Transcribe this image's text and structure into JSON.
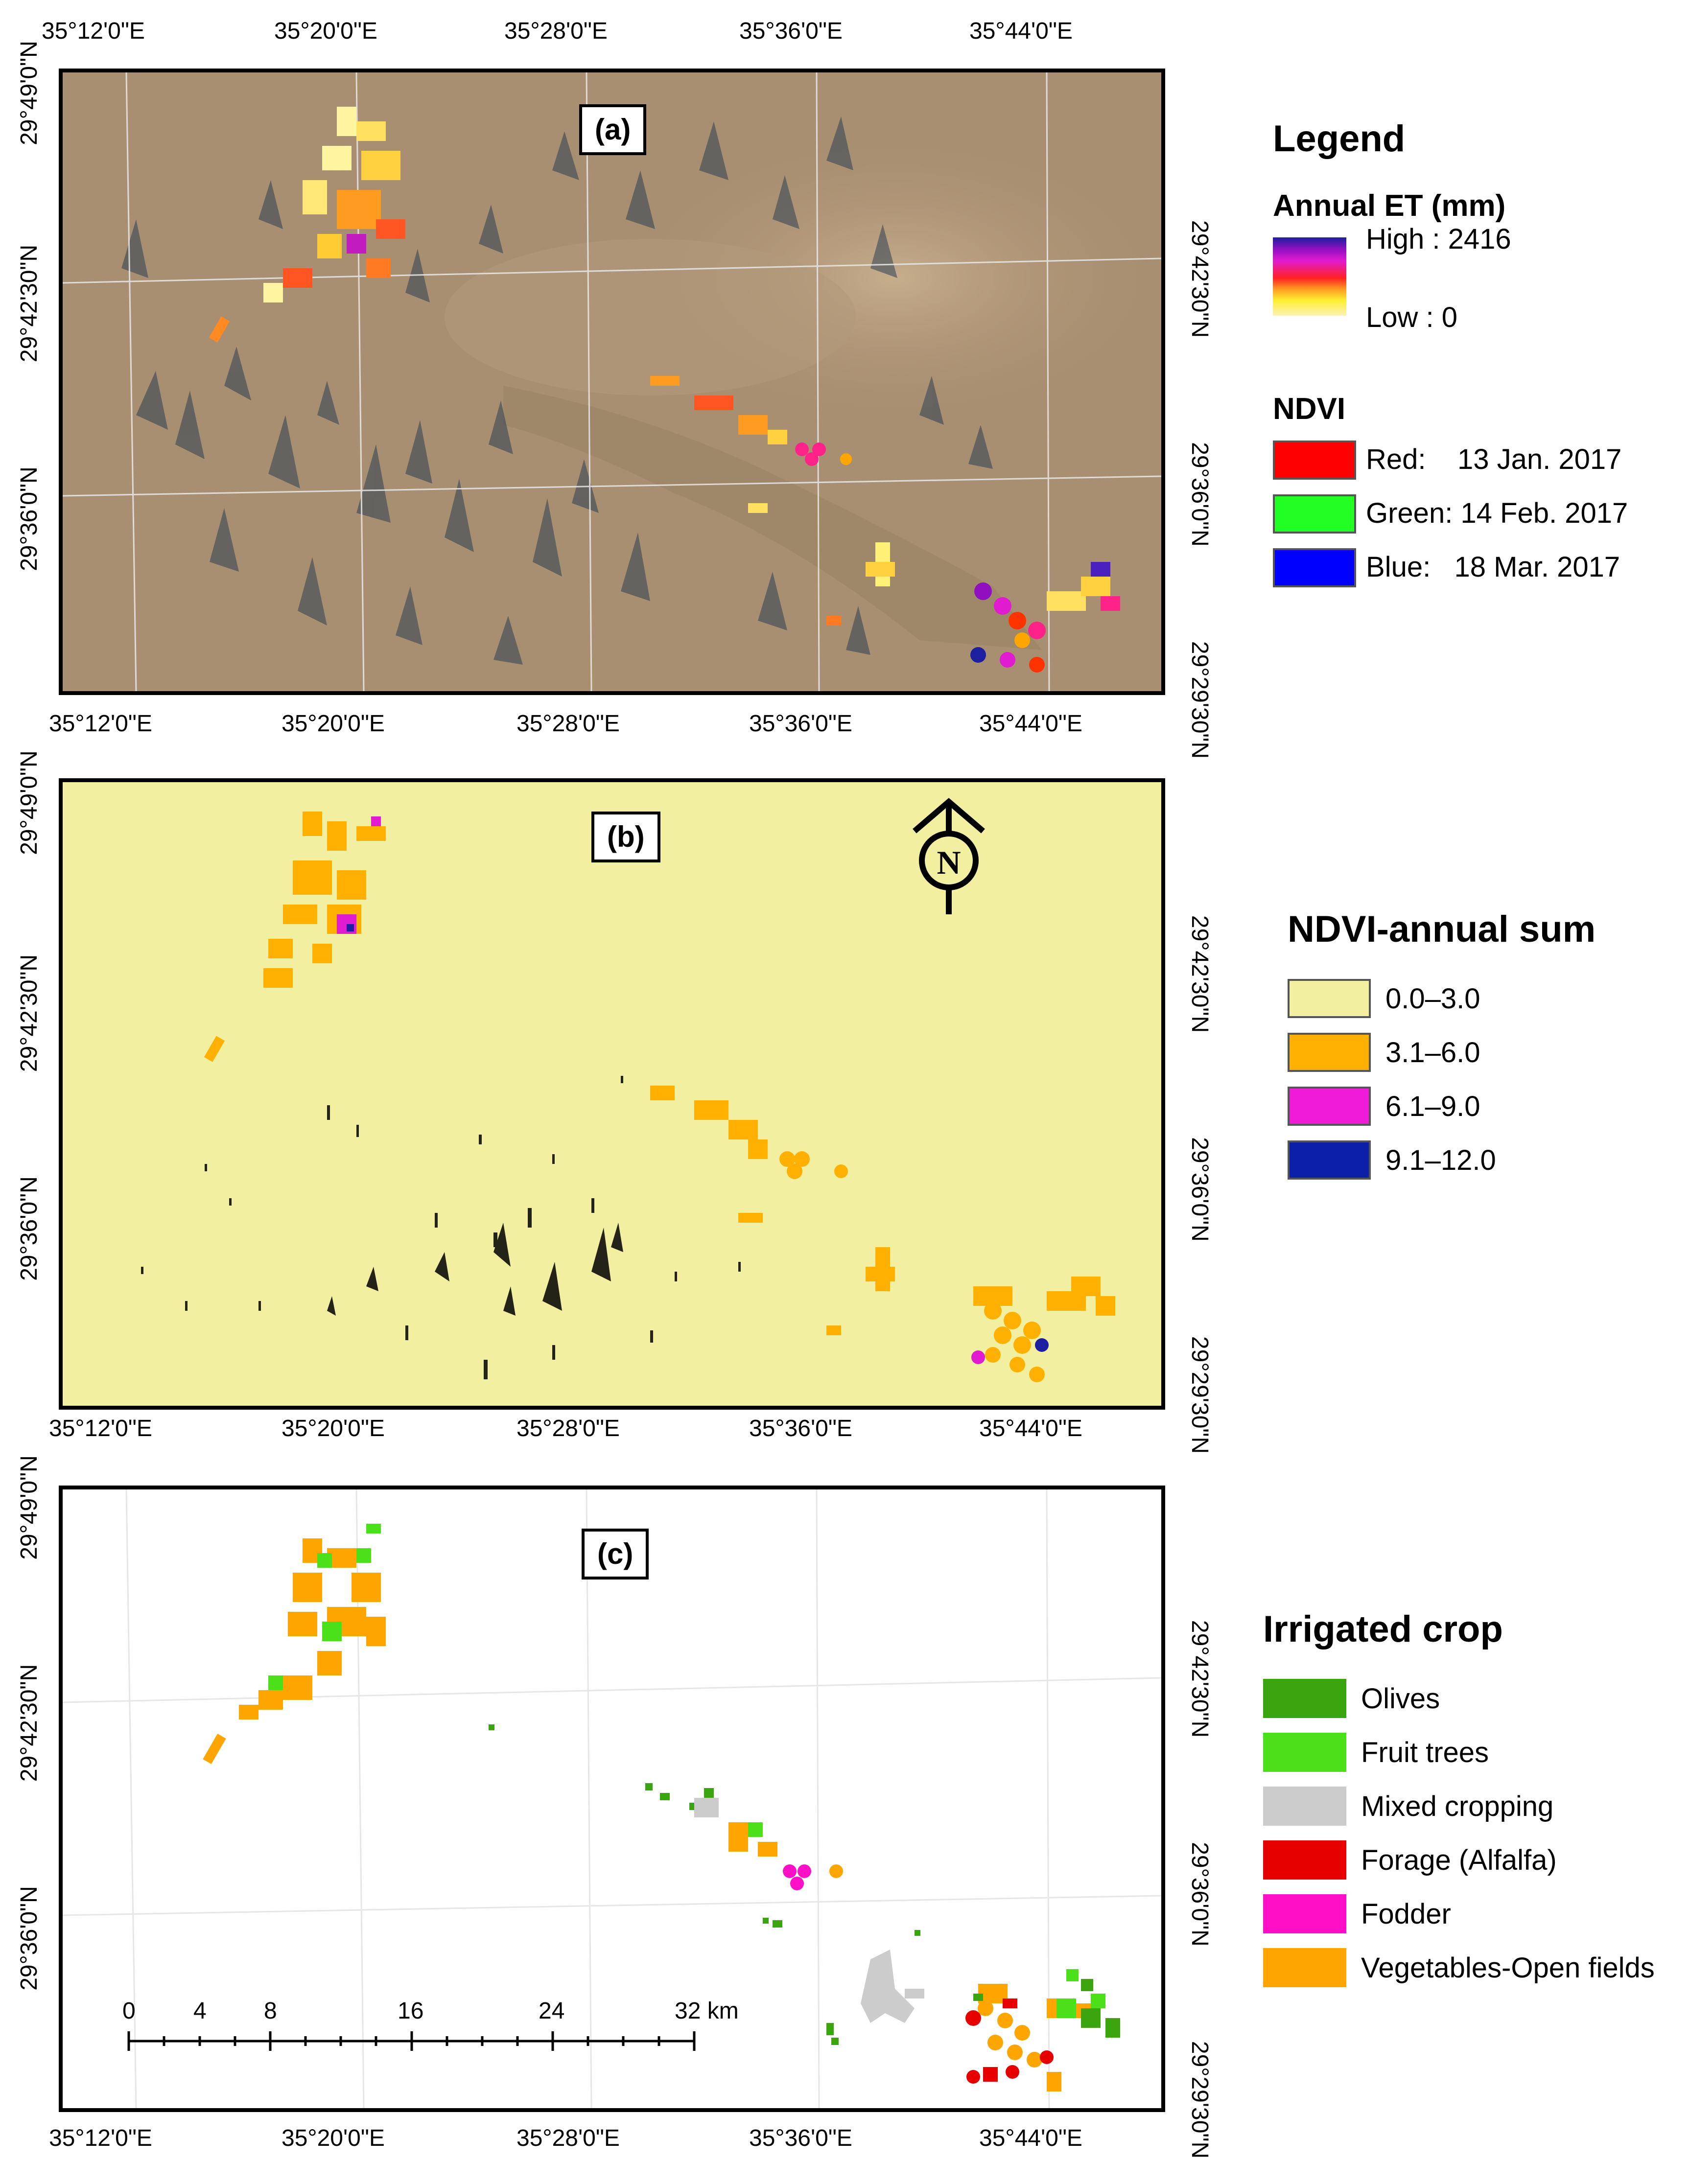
{
  "axes": {
    "top_x": [
      "35°12'0\"E",
      "35°20'0\"E",
      "35°28'0\"E",
      "35°36'0\"E",
      "35°44'0\"E"
    ],
    "lon_full": [
      "35°12'0\"E",
      "35°20'0\"E",
      "35°28'0\"E",
      "35°36'0\"E",
      "35°44'0\"E"
    ],
    "lat_left": [
      "29°49'0\"N",
      "29°42'30\"N",
      "29°36'0\"N"
    ],
    "lat_right": [
      "29°42'30\"N",
      "29°36'0\"N",
      "29°29'30\"N"
    ]
  },
  "panels": {
    "a_label": "(a)",
    "b_label": "(b)",
    "c_label": "(c)"
  },
  "legend": {
    "title": "Legend",
    "et_title": "Annual ET (mm)",
    "et_high": "High : 2416",
    "et_low": "Low : 0",
    "ndvi_title": "NDVI",
    "ndvi_items": [
      {
        "label": "Red:    13 Jan. 2017",
        "color": "#ff0000"
      },
      {
        "label": "Green: 14 Feb. 2017",
        "color": "#22ff22"
      },
      {
        "label": "Blue:   18 Mar. 2017",
        "color": "#0000ff"
      }
    ],
    "ndvi_sum_title": "NDVI-annual sum",
    "ndvi_sum_items": [
      {
        "label": "0.0–3.0",
        "color": "#f2efa1"
      },
      {
        "label": "3.1–6.0",
        "color": "#ffb000"
      },
      {
        "label": "6.1–9.0",
        "color": "#ef1bd6"
      },
      {
        "label": "9.1–12.0",
        "color": "#0b1fa8"
      }
    ],
    "crop_title": "Irrigated crop",
    "crop_items": [
      {
        "label": "Olives",
        "color": "#3aa50f"
      },
      {
        "label": "Fruit trees",
        "color": "#4be01a"
      },
      {
        "label": "Mixed cropping",
        "color": "#cccccc"
      },
      {
        "label": "Forage (Alfalfa)",
        "color": "#e60000"
      },
      {
        "label": "Fodder",
        "color": "#ff0fc6"
      },
      {
        "label": "Vegetables-Open fields",
        "color": "#ffa500"
      }
    ]
  },
  "north_arrow": {
    "letter": "N"
  },
  "scale_bar": {
    "labels": [
      "0",
      "4",
      "8",
      "16",
      "24",
      "32 km"
    ]
  },
  "colors": {
    "satellite_bg": "#a98f71",
    "ndvi_bg": "#f2efa1",
    "orange": "#ffb000",
    "magenta": "#e01bd0",
    "navy": "#1b1fa0"
  }
}
